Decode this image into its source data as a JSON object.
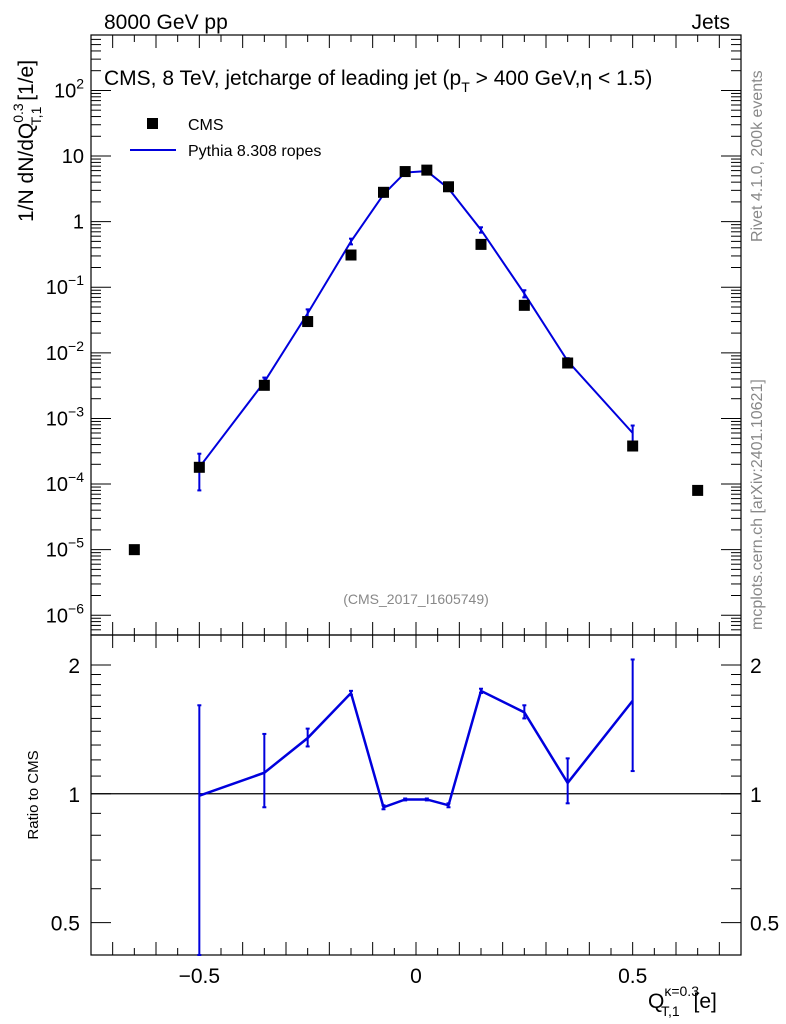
{
  "header": {
    "left": "8000 GeV pp",
    "right": "Jets"
  },
  "side_labels": {
    "rivet": "Rivet 4.1.0,  200k events",
    "mcplots": "mcplots.cern.ch [arXiv:2401.10621]"
  },
  "chart_data": [
    {
      "type": "scatter",
      "title_parts": {
        "a": "CMS, 8 TeV, jetcharge of leading jet (p",
        "sub": "T",
        "b": " > 400 GeV,η < 1.5)"
      },
      "ylabel_parts": {
        "a": "1/N dN/dQ",
        "sup": "0.3",
        "sub": "T,1",
        "b": " [1/e]"
      },
      "yscale": "log",
      "ylim": [
        5e-07,
        700
      ],
      "xlim": [
        -0.75,
        0.75
      ],
      "watermark": "(CMS_2017_I1605749)",
      "legend": {
        "position": "top-left",
        "entries": [
          "CMS",
          "Pythia 8.308 ropes"
        ]
      },
      "ytick_labels": [
        {
          "v": 100,
          "m": "10",
          "e": "2"
        },
        {
          "v": 10,
          "m": "10",
          "e": ""
        },
        {
          "v": 1,
          "m": "1",
          "e": ""
        },
        {
          "v": 0.1,
          "m": "10",
          "e": "−1"
        },
        {
          "v": 0.01,
          "m": "10",
          "e": "−2"
        },
        {
          "v": 0.001,
          "m": "10",
          "e": "−3"
        },
        {
          "v": 0.0001,
          "m": "10",
          "e": "−4"
        },
        {
          "v": 1e-05,
          "m": "10",
          "e": "−5"
        },
        {
          "v": 1e-06,
          "m": "10",
          "e": "−6"
        }
      ],
      "series": [
        {
          "name": "CMS",
          "x": [
            -0.65,
            -0.5,
            -0.35,
            -0.25,
            -0.15,
            -0.075,
            -0.025,
            0.025,
            0.075,
            0.15,
            0.25,
            0.35,
            0.5,
            0.65
          ],
          "y": [
            1e-05,
            0.00018,
            0.0032,
            0.03,
            0.31,
            2.8,
            5.8,
            6.1,
            3.4,
            0.45,
            0.053,
            0.007,
            0.00038,
            8e-05
          ],
          "color": "#000000"
        },
        {
          "name": "Pythia 8.308 ropes",
          "x": [
            -0.5,
            -0.35,
            -0.25,
            -0.15,
            -0.075,
            -0.025,
            0.025,
            0.075,
            0.15,
            0.25,
            0.35,
            0.5
          ],
          "y": [
            0.00018,
            0.0036,
            0.04,
            0.5,
            2.6,
            5.6,
            5.9,
            3.2,
            0.75,
            0.08,
            0.0075,
            0.0006
          ],
          "yerr_low": [
            0.0001,
            0.0006,
            0.006,
            0.05,
            0.2,
            0.1,
            0.1,
            0.2,
            0.07,
            0.01,
            0.0008,
            0.0002
          ],
          "yerr_high": [
            0.00011,
            0.0006,
            0.006,
            0.05,
            0.2,
            0.1,
            0.1,
            0.2,
            0.07,
            0.01,
            0.0008,
            0.00018
          ],
          "color": "#0000dd"
        }
      ]
    },
    {
      "type": "line",
      "ylabel": "Ratio to CMS",
      "yscale": "log",
      "ylim": [
        0.42,
        2.35
      ],
      "xlim": [
        -0.75,
        0.75
      ],
      "reference_line": 1,
      "ytick_labels": [
        {
          "v": 2,
          "label": "2"
        },
        {
          "v": 1,
          "label": "1"
        },
        {
          "v": 0.5,
          "label": "0.5"
        }
      ],
      "xtick_labels": [
        {
          "v": -0.5,
          "label": "−0.5"
        },
        {
          "v": 0,
          "label": "0"
        },
        {
          "v": 0.5,
          "label": "0.5"
        }
      ],
      "xlabel_parts": {
        "a": "Q",
        "sup": "κ=0.3",
        "sub": "T,1",
        "b": " [e]"
      },
      "series": [
        {
          "name": "Pythia 8.308 ropes / CMS",
          "x": [
            -0.5,
            -0.35,
            -0.25,
            -0.15,
            -0.075,
            -0.025,
            0.025,
            0.075,
            0.15,
            0.25,
            0.35,
            0.5
          ],
          "y": [
            0.99,
            1.12,
            1.35,
            1.72,
            0.93,
            0.97,
            0.97,
            0.94,
            1.74,
            1.55,
            1.06,
            1.65
          ],
          "yerr_low": [
            0.64,
            0.19,
            0.06,
            0.02,
            0.01,
            0.005,
            0.005,
            0.01,
            0.02,
            0.05,
            0.11,
            0.52
          ],
          "yerr_high": [
            0.62,
            0.26,
            0.07,
            0.02,
            0.01,
            0.005,
            0.005,
            0.01,
            0.02,
            0.06,
            0.15,
            0.41
          ],
          "color": "#0000dd"
        }
      ]
    }
  ]
}
